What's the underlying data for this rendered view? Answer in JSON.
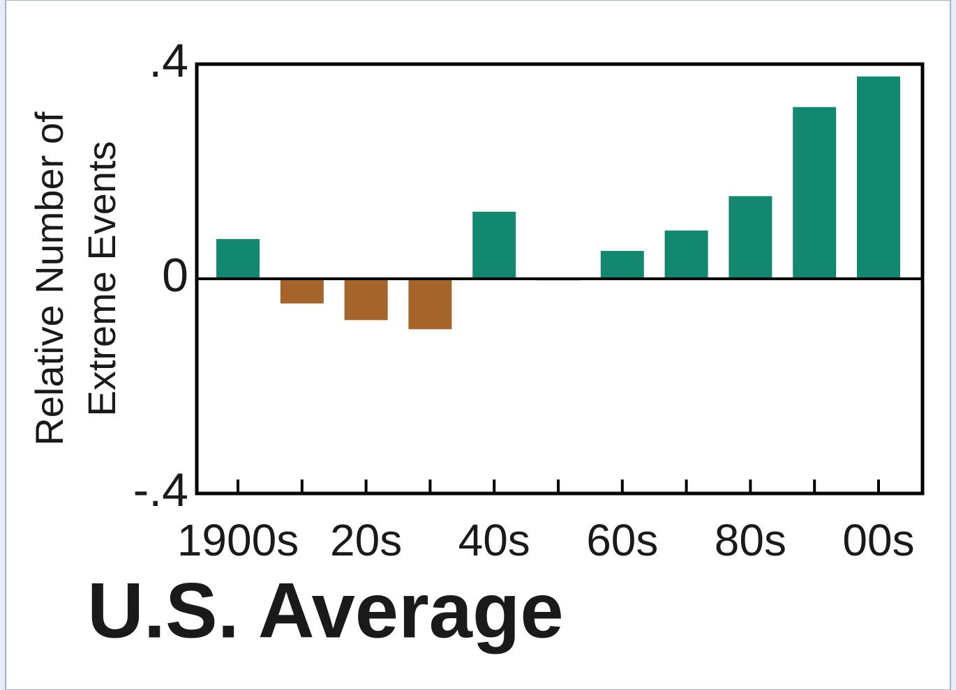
{
  "chart_data": {
    "type": "bar",
    "subtitle": "U.S. Average",
    "ylabel": [
      "Relative Number of",
      "Extreme Events"
    ],
    "categories": [
      "1900s",
      null,
      "20s",
      null,
      "40s",
      null,
      "60s",
      null,
      "80s",
      null,
      "00s"
    ],
    "values": [
      0.074,
      -0.046,
      -0.077,
      -0.094,
      0.125,
      -0.003,
      0.052,
      0.09,
      0.154,
      0.32,
      0.377
    ],
    "color_positive": "#138871",
    "color_negative": "#a5652a",
    "ylim": [
      -0.4,
      0.4
    ],
    "yticks": [
      {
        "value": -0.4,
        "label": "-.4"
      },
      0,
      {
        "value": 0.4,
        "label": ".4"
      }
    ],
    "zero_line": true
  }
}
